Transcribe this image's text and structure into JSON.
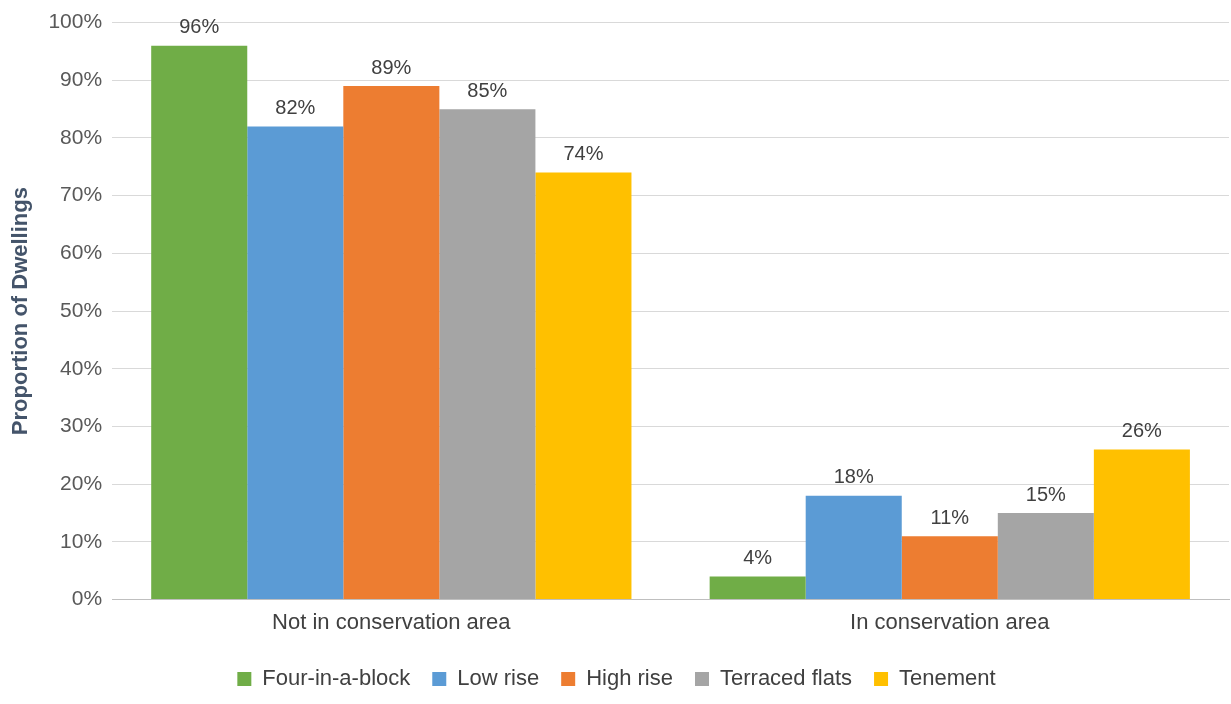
{
  "chart_data": {
    "type": "bar",
    "ylabel": "Proportion of Dwellings",
    "categories": [
      "Not in conservation area",
      "In conservation area"
    ],
    "series": [
      {
        "name": "Four-in-a-block",
        "color": "#70ad47",
        "values": [
          96,
          4
        ],
        "value_labels": [
          "96%",
          "4%"
        ]
      },
      {
        "name": "Low rise",
        "color": "#5b9bd5",
        "values": [
          82,
          18
        ],
        "value_labels": [
          "82%",
          "18%"
        ]
      },
      {
        "name": "High rise",
        "color": "#ed7d31",
        "values": [
          89,
          11
        ],
        "value_labels": [
          "89%",
          "11%"
        ]
      },
      {
        "name": "Terraced flats",
        "color": "#a5a5a5",
        "values": [
          85,
          15
        ],
        "value_labels": [
          "85%",
          "15%"
        ]
      },
      {
        "name": "Tenement",
        "color": "#ffc000",
        "values": [
          74,
          26
        ],
        "value_labels": [
          "74%",
          "26%"
        ]
      }
    ],
    "ylim": [
      0,
      100
    ],
    "yticks": [
      {
        "value": 0,
        "label": "0%"
      },
      {
        "value": 10,
        "label": "10%"
      },
      {
        "value": 20,
        "label": "20%"
      },
      {
        "value": 30,
        "label": "30%"
      },
      {
        "value": 40,
        "label": "40%"
      },
      {
        "value": 50,
        "label": "50%"
      },
      {
        "value": 60,
        "label": "60%"
      },
      {
        "value": 70,
        "label": "70%"
      },
      {
        "value": 80,
        "label": "80%"
      },
      {
        "value": 90,
        "label": "90%"
      },
      {
        "value": 100,
        "label": "100%"
      }
    ],
    "grid": "y",
    "legend": "bottom"
  }
}
